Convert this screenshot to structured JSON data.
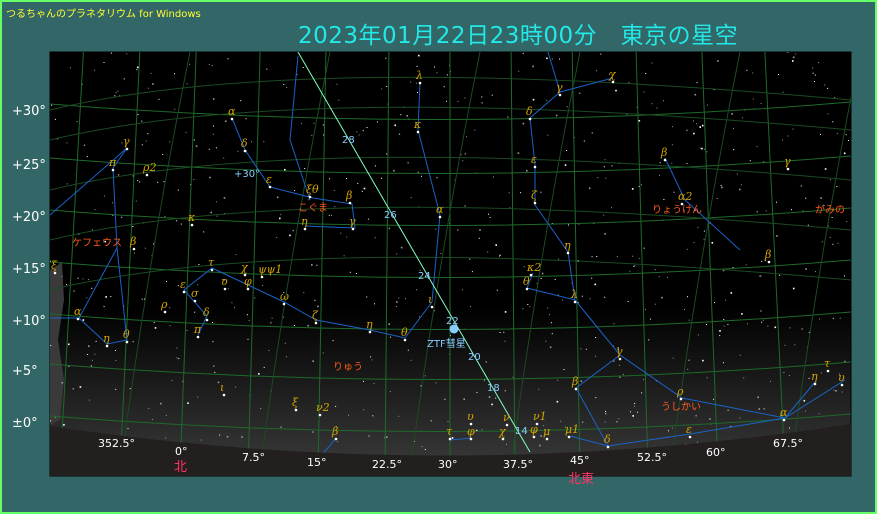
{
  "app": {
    "title": "つるちゃんのプラネタリウム for Windows"
  },
  "header": {
    "title": "2023年01月22日23時00分　東京の星空"
  },
  "altitude_labels": [
    "+30°",
    "+25°",
    "+20°",
    "+15°",
    "+10°",
    "+5°",
    "±0°"
  ],
  "azimuth_labels": [
    "352.5°",
    "0°",
    "7.5°",
    "15°",
    "22.5°",
    "30°",
    "37.5°",
    "45°",
    "52.5°",
    "60°",
    "67.5°"
  ],
  "directions": [
    "北",
    "北東"
  ],
  "declination_label": "+30°",
  "constellations": [
    "ケフェウス",
    "こぐま",
    "りゅう",
    "りょうけん",
    "かみの",
    "うしかい"
  ],
  "greek_labels": [
    "α",
    "δ",
    "ε",
    "ξθ",
    "β",
    "η",
    "γ",
    "λ",
    "κ",
    "α",
    "ι",
    "θ",
    "η",
    "ζ",
    "ω",
    "χ",
    "ψψ1",
    "φ",
    "τ",
    "υ",
    "ε",
    "σ",
    "ρ",
    "δ",
    "π",
    "α",
    "η",
    "θ",
    "ξ",
    "β",
    "κ",
    "π",
    "ρ2",
    "γ",
    "ι",
    "ξ",
    "ν2",
    "β",
    "τ",
    "υ",
    "φ",
    "χ",
    "ν",
    "ν1",
    "φ",
    "μ",
    "μ1",
    "δ",
    "β",
    "κ2",
    "θ",
    "λ",
    "η",
    "ζ",
    "ε",
    "δ",
    "γ",
    "χ",
    "β",
    "α2",
    "γ",
    "β",
    "γ",
    "ρ",
    "ε",
    "α",
    "η",
    "τ",
    "υ"
  ],
  "comet": {
    "name": "ZTF彗星",
    "date_marks": [
      "28",
      "26",
      "24",
      "22",
      "20",
      "18",
      "14"
    ]
  },
  "colors": {
    "background": "#336666",
    "border": "#66ff66",
    "title": "#22e8e8",
    "app_title": "#ffff33",
    "grid": "#1e6a2a",
    "constellation_line": "#1a64c8",
    "greek": "#d4a400",
    "constellation_name": "#ff5a1a",
    "comet_track": "#80ffc0",
    "comet": "#88ccff",
    "direction": "#ff3366"
  }
}
